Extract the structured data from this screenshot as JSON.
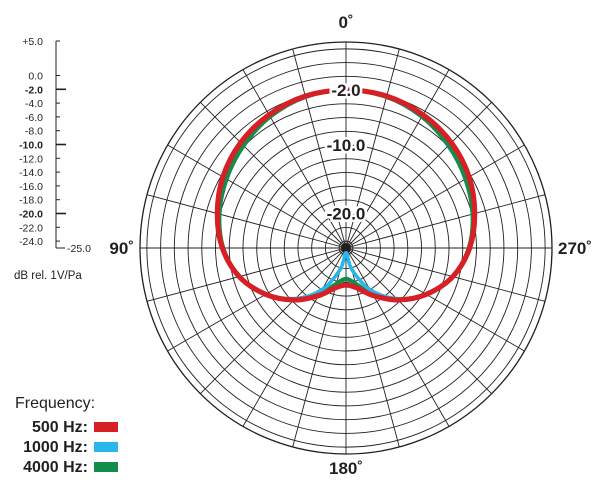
{
  "chart_data": {
    "type": "polar",
    "title": "",
    "radial_unit_note": "dB rel. 1V/Pa",
    "radial_range": [
      -25.0,
      5.0
    ],
    "angle_labels": [
      {
        "angle": 0,
        "text": "0˚"
      },
      {
        "angle": 90,
        "text": "90˚"
      },
      {
        "angle": 180,
        "text": "180˚"
      },
      {
        "angle": 270,
        "text": "270˚"
      }
    ],
    "ring_labels": [
      {
        "value": -2.0,
        "text": "-2.0"
      },
      {
        "value": -10.0,
        "text": "-10.0"
      },
      {
        "value": -20.0,
        "text": "-20.0"
      }
    ],
    "scale_ticks": [
      {
        "value": 5.0,
        "text": "+5.0",
        "bold": false
      },
      {
        "value": 0.0,
        "text": "0.0",
        "bold": false
      },
      {
        "value": -2.0,
        "text": "-2.0",
        "bold": true
      },
      {
        "value": -4.0,
        "text": "-4.0",
        "bold": false
      },
      {
        "value": -6.0,
        "text": "-6.0",
        "bold": false
      },
      {
        "value": -8.0,
        "text": "-8.0",
        "bold": false
      },
      {
        "value": -10.0,
        "text": "-10.0",
        "bold": true
      },
      {
        "value": -12.0,
        "text": "-12.0",
        "bold": false
      },
      {
        "value": -14.0,
        "text": "-14.0",
        "bold": false
      },
      {
        "value": -16.0,
        "text": "-16.0",
        "bold": false
      },
      {
        "value": -18.0,
        "text": "-18.0",
        "bold": false
      },
      {
        "value": -20.0,
        "text": "-20.0",
        "bold": true
      },
      {
        "value": -22.0,
        "text": "-22.0",
        "bold": false
      },
      {
        "value": -24.0,
        "text": "-24.0",
        "bold": false
      },
      {
        "value": -25.0,
        "text": "-25.0",
        "bold": false
      }
    ],
    "legend_title": "Frequency:",
    "series": [
      {
        "name": "500 Hz:",
        "color": "#d71f26",
        "points": [
          [
            0,
            -2.0
          ],
          [
            15,
            -2.1
          ],
          [
            30,
            -2.6
          ],
          [
            45,
            -3.3
          ],
          [
            60,
            -4.3
          ],
          [
            75,
            -5.6
          ],
          [
            90,
            -7.0
          ],
          [
            105,
            -8.9
          ],
          [
            120,
            -11.5
          ],
          [
            135,
            -14.3
          ],
          [
            150,
            -17.0
          ],
          [
            165,
            -19.0
          ],
          [
            180,
            -19.6
          ],
          [
            195,
            -19.0
          ],
          [
            210,
            -17.0
          ],
          [
            225,
            -14.3
          ],
          [
            240,
            -11.5
          ],
          [
            255,
            -8.9
          ],
          [
            270,
            -7.0
          ],
          [
            285,
            -5.6
          ],
          [
            300,
            -4.3
          ],
          [
            315,
            -3.3
          ],
          [
            330,
            -2.6
          ],
          [
            345,
            -2.1
          ],
          [
            360,
            -2.0
          ]
        ]
      },
      {
        "name": "1000 Hz:",
        "color": "#29b6e9",
        "points": [
          [
            0,
            -2.0
          ],
          [
            15,
            -2.1
          ],
          [
            30,
            -2.6
          ],
          [
            45,
            -3.3
          ],
          [
            60,
            -4.3
          ],
          [
            75,
            -5.6
          ],
          [
            90,
            -7.0
          ],
          [
            105,
            -8.9
          ],
          [
            120,
            -11.6
          ],
          [
            135,
            -14.6
          ],
          [
            150,
            -18.0
          ],
          [
            165,
            -21.8
          ],
          [
            180,
            -24.3
          ],
          [
            195,
            -21.8
          ],
          [
            210,
            -18.0
          ],
          [
            225,
            -14.6
          ],
          [
            240,
            -11.6
          ],
          [
            255,
            -8.9
          ],
          [
            270,
            -7.0
          ],
          [
            285,
            -5.6
          ],
          [
            300,
            -4.3
          ],
          [
            315,
            -3.3
          ],
          [
            330,
            -2.6
          ],
          [
            345,
            -2.1
          ],
          [
            360,
            -2.0
          ]
        ]
      },
      {
        "name": "4000 Hz:",
        "color": "#138d4c",
        "points": [
          [
            0,
            -2.0
          ],
          [
            15,
            -2.2
          ],
          [
            30,
            -2.9
          ],
          [
            45,
            -3.9
          ],
          [
            60,
            -4.9
          ],
          [
            75,
            -5.9
          ],
          [
            90,
            -7.1
          ],
          [
            105,
            -8.9
          ],
          [
            120,
            -11.5
          ],
          [
            135,
            -14.3
          ],
          [
            150,
            -17.2
          ],
          [
            165,
            -19.6
          ],
          [
            180,
            -20.5
          ],
          [
            195,
            -19.6
          ],
          [
            210,
            -17.2
          ],
          [
            225,
            -14.3
          ],
          [
            240,
            -11.5
          ],
          [
            255,
            -8.9
          ],
          [
            270,
            -7.1
          ],
          [
            285,
            -5.9
          ],
          [
            300,
            -4.9
          ],
          [
            315,
            -3.9
          ],
          [
            330,
            -2.9
          ],
          [
            345,
            -2.2
          ],
          [
            360,
            -2.0
          ]
        ]
      }
    ]
  }
}
